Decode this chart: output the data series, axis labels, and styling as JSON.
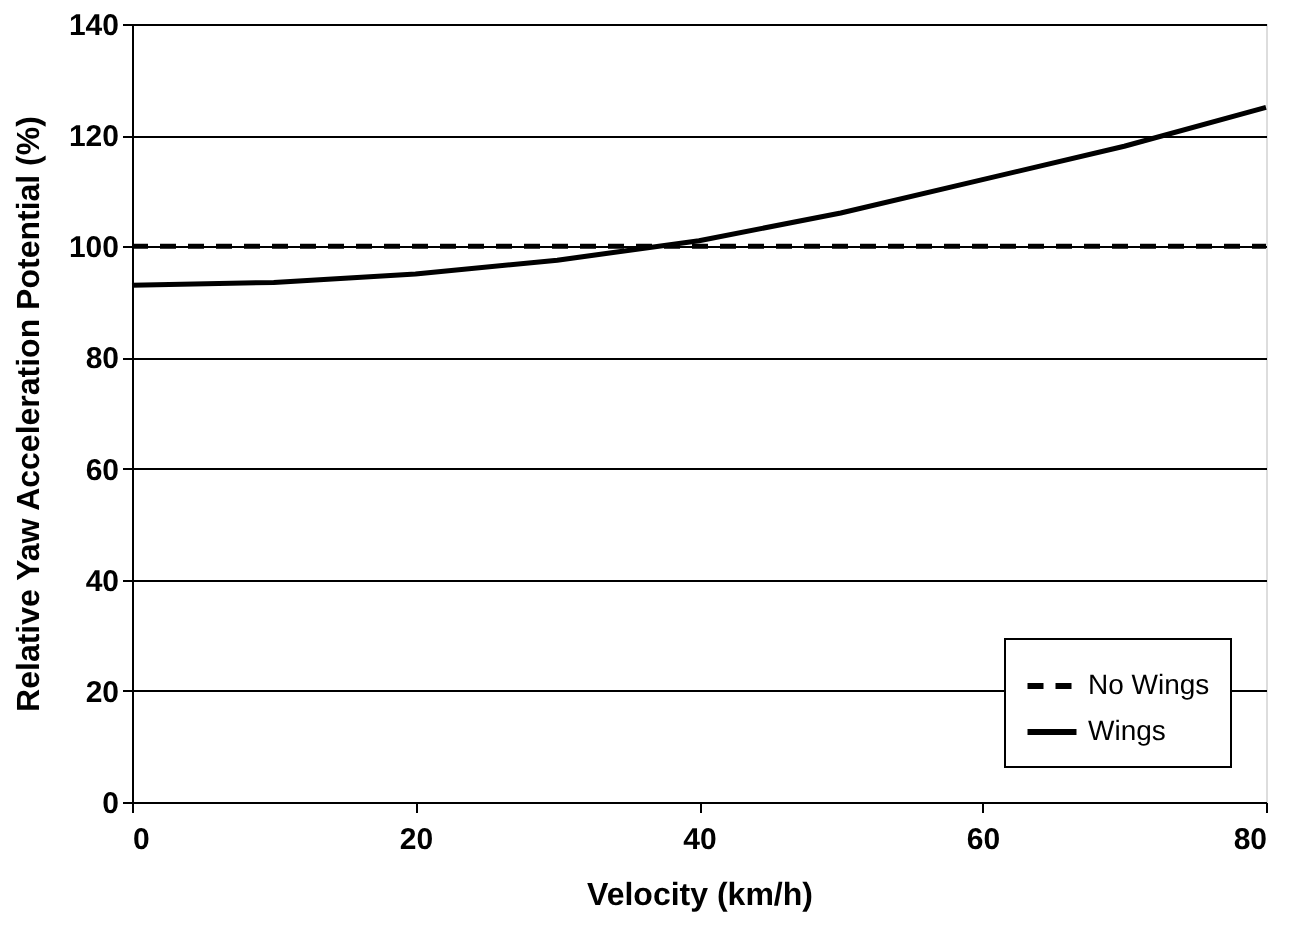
{
  "chart_data": {
    "type": "line",
    "xlabel": "Velocity (km/h)",
    "ylabel": "Relative Yaw Acceleration Potential (%)",
    "x": [
      0,
      10,
      20,
      30,
      40,
      50,
      60,
      70,
      80
    ],
    "xlim": [
      0,
      80
    ],
    "xticks": [
      0,
      20,
      40,
      60,
      80
    ],
    "ylim": [
      0,
      140
    ],
    "yticks": [
      0,
      20,
      40,
      60,
      80,
      100,
      120,
      140
    ],
    "grid": "y",
    "legend": "bottom right",
    "series": [
      {
        "name": "No Wings",
        "color": "#000000",
        "line_style": "dashed",
        "values": [
          100,
          100,
          100,
          100,
          100,
          100,
          100,
          100,
          100
        ]
      },
      {
        "name": "Wings",
        "color": "#000000",
        "line_style": "solid",
        "values": [
          93,
          93.5,
          95,
          97.5,
          101,
          106,
          112,
          118,
          125
        ]
      }
    ]
  }
}
